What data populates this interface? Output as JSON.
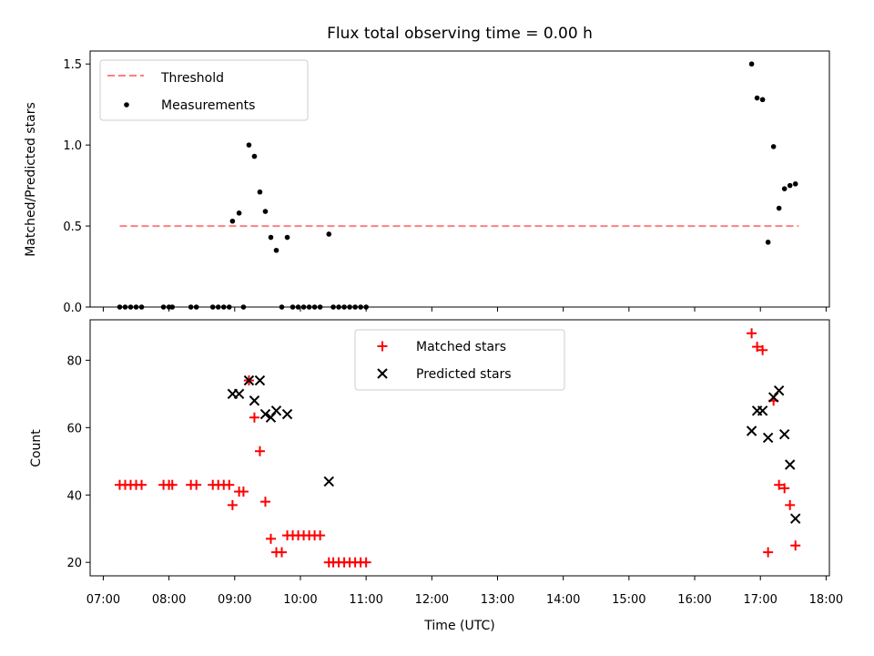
{
  "chart_data": [
    {
      "type": "scatter",
      "title": "Flux total observing time = 0.00 h",
      "xlabel": "",
      "ylabel": "Matched/Predicted stars",
      "ylim": [
        0,
        1.58
      ],
      "yticks": [
        "0.0",
        "0.5",
        "1.0",
        "1.5"
      ],
      "legend": {
        "placement": "top-left",
        "entries": [
          "Threshold",
          "Measurements"
        ]
      },
      "threshold": {
        "name": "Threshold",
        "value": 0.5,
        "x_start": "07:15",
        "x_end": "17:35",
        "color": "#ff7f7f"
      },
      "series": [
        {
          "name": "Measurements",
          "color": "#000000",
          "points": [
            [
              "07:15",
              0
            ],
            [
              "07:20",
              0
            ],
            [
              "07:25",
              0
            ],
            [
              "07:30",
              0
            ],
            [
              "07:35",
              0
            ],
            [
              "07:55",
              0
            ],
            [
              "08:00",
              0
            ],
            [
              "08:03",
              0
            ],
            [
              "08:20",
              0
            ],
            [
              "08:25",
              0
            ],
            [
              "08:40",
              0
            ],
            [
              "08:45",
              0
            ],
            [
              "08:50",
              0
            ],
            [
              "08:55",
              0
            ],
            [
              "08:58",
              0.53
            ],
            [
              "09:04",
              0.58
            ],
            [
              "09:08",
              0
            ],
            [
              "09:13",
              1.0
            ],
            [
              "09:18",
              0.93
            ],
            [
              "09:23",
              0.71
            ],
            [
              "09:28",
              0.59
            ],
            [
              "09:33",
              0.43
            ],
            [
              "09:38",
              0.35
            ],
            [
              "09:43",
              0
            ],
            [
              "09:48",
              0.43
            ],
            [
              "09:53",
              0
            ],
            [
              "09:58",
              0
            ],
            [
              "10:03",
              0
            ],
            [
              "10:08",
              0
            ],
            [
              "10:13",
              0
            ],
            [
              "10:18",
              0
            ],
            [
              "10:26",
              0.45
            ],
            [
              "10:30",
              0
            ],
            [
              "10:35",
              0
            ],
            [
              "10:40",
              0
            ],
            [
              "10:45",
              0
            ],
            [
              "10:50",
              0
            ],
            [
              "10:55",
              0
            ],
            [
              "11:00",
              0
            ],
            [
              "16:52",
              1.5
            ],
            [
              "16:57",
              1.29
            ],
            [
              "17:02",
              1.28
            ],
            [
              "17:07",
              0.4
            ],
            [
              "17:12",
              0.99
            ],
            [
              "17:17",
              0.61
            ],
            [
              "17:22",
              0.73
            ],
            [
              "17:27",
              0.75
            ],
            [
              "17:32",
              0.76
            ]
          ]
        }
      ]
    },
    {
      "type": "scatter",
      "title": "",
      "xlabel": "Time (UTC)",
      "ylabel": "Count",
      "ylim": [
        16,
        92
      ],
      "yticks": [
        "20",
        "40",
        "60",
        "80"
      ],
      "xlim": [
        "06:48",
        "18:03"
      ],
      "xticks": [
        "07:00",
        "08:00",
        "09:00",
        "10:00",
        "11:00",
        "12:00",
        "13:00",
        "14:00",
        "15:00",
        "16:00",
        "17:00",
        "18:00"
      ],
      "legend": {
        "placement": "top-center",
        "entries": [
          "Matched stars",
          "Predicted stars"
        ]
      },
      "series": [
        {
          "name": "Matched stars",
          "marker": "plus",
          "color": "#ff0000",
          "points": [
            [
              "07:15",
              43
            ],
            [
              "07:20",
              43
            ],
            [
              "07:25",
              43
            ],
            [
              "07:30",
              43
            ],
            [
              "07:35",
              43
            ],
            [
              "07:55",
              43
            ],
            [
              "08:00",
              43
            ],
            [
              "08:03",
              43
            ],
            [
              "08:20",
              43
            ],
            [
              "08:25",
              43
            ],
            [
              "08:40",
              43
            ],
            [
              "08:45",
              43
            ],
            [
              "08:50",
              43
            ],
            [
              "08:55",
              43
            ],
            [
              "08:58",
              37
            ],
            [
              "09:04",
              41
            ],
            [
              "09:08",
              41
            ],
            [
              "09:13",
              74
            ],
            [
              "09:18",
              63
            ],
            [
              "09:23",
              53
            ],
            [
              "09:28",
              38
            ],
            [
              "09:33",
              27
            ],
            [
              "09:38",
              23
            ],
            [
              "09:43",
              23
            ],
            [
              "09:48",
              28
            ],
            [
              "09:53",
              28
            ],
            [
              "09:58",
              28
            ],
            [
              "10:03",
              28
            ],
            [
              "10:08",
              28
            ],
            [
              "10:13",
              28
            ],
            [
              "10:18",
              28
            ],
            [
              "10:26",
              20
            ],
            [
              "10:30",
              20
            ],
            [
              "10:35",
              20
            ],
            [
              "10:40",
              20
            ],
            [
              "10:45",
              20
            ],
            [
              "10:50",
              20
            ],
            [
              "10:55",
              20
            ],
            [
              "11:00",
              20
            ],
            [
              "16:52",
              88
            ],
            [
              "16:57",
              84
            ],
            [
              "17:02",
              83
            ],
            [
              "17:07",
              23
            ],
            [
              "17:12",
              68
            ],
            [
              "17:17",
              43
            ],
            [
              "17:22",
              42
            ],
            [
              "17:27",
              37
            ],
            [
              "17:32",
              25
            ]
          ]
        },
        {
          "name": "Predicted stars",
          "marker": "x",
          "color": "#000000",
          "points": [
            [
              "08:58",
              70
            ],
            [
              "09:04",
              70
            ],
            [
              "09:13",
              74
            ],
            [
              "09:18",
              68
            ],
            [
              "09:23",
              74
            ],
            [
              "09:28",
              64
            ],
            [
              "09:33",
              63
            ],
            [
              "09:38",
              65
            ],
            [
              "09:48",
              64
            ],
            [
              "10:26",
              44
            ],
            [
              "16:52",
              59
            ],
            [
              "16:57",
              65
            ],
            [
              "17:02",
              65
            ],
            [
              "17:07",
              57
            ],
            [
              "17:12",
              69
            ],
            [
              "17:17",
              71
            ],
            [
              "17:22",
              58
            ],
            [
              "17:27",
              49
            ],
            [
              "17:32",
              33
            ]
          ]
        }
      ]
    }
  ]
}
